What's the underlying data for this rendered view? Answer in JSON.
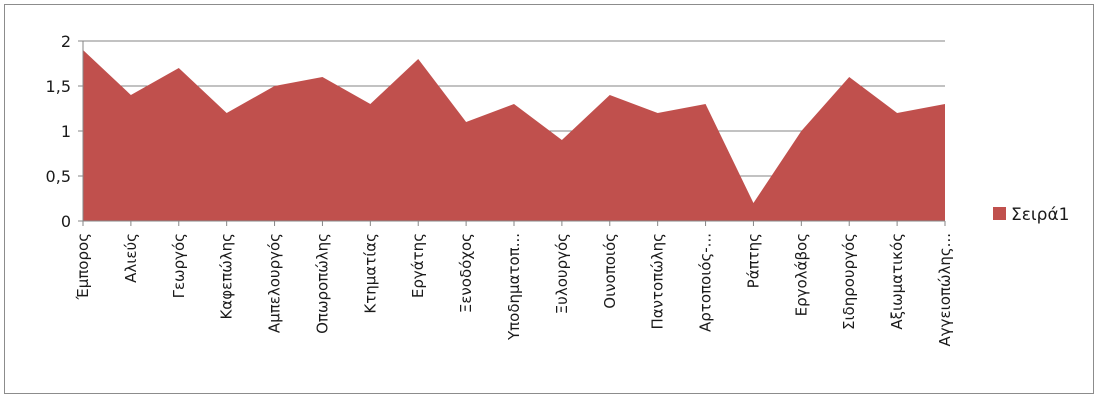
{
  "chart_data": {
    "type": "area",
    "categories": [
      "Έμπορος",
      "Αλιεύς",
      "Γεωργός",
      "Καφεπώλης",
      "Αμπελουργός",
      "Οπωροπώλης",
      "Κτηματίας",
      "Εργάτης",
      "Ξενοδόχος",
      "Υποδηματοπ...",
      "Ξυλουργός",
      "Οινοποιός",
      "Παντοπώλης",
      "Αρτοποιός-...",
      "Ράπτης",
      "Εργολάβος",
      "Σιδηρουργός",
      "Αξιωματικός",
      "Αγγειοπώλης..."
    ],
    "series": [
      {
        "name": "Σειρά1",
        "color": "#c0504d",
        "values": [
          1.9,
          1.4,
          1.7,
          1.2,
          1.5,
          1.6,
          1.3,
          1.8,
          1.1,
          1.3,
          0.9,
          1.4,
          1.2,
          1.3,
          0.2,
          1.0,
          1.6,
          1.2,
          1.3
        ]
      }
    ],
    "ylim": [
      0,
      2
    ],
    "yticks": [
      0,
      0.5,
      1,
      1.5,
      2
    ],
    "ytick_labels": [
      "0",
      "0,5",
      "1",
      "1,5",
      "2"
    ],
    "grid": true,
    "legend_position": "right",
    "title": "",
    "xlabel": "",
    "ylabel": ""
  }
}
